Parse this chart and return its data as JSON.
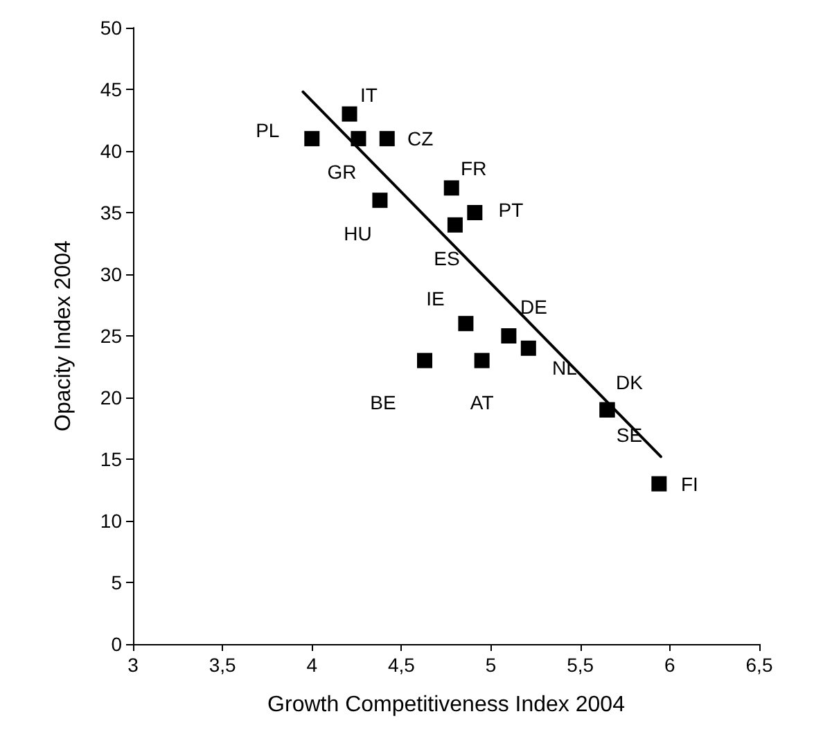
{
  "chart_data": {
    "type": "scatter",
    "xlabel": "Growth Competitiveness Index 2004",
    "ylabel": "Opacity Index 2004",
    "xlim": [
      3,
      6.5
    ],
    "xticks": [
      3,
      {
        "value": 3.5,
        "label": "3,5"
      },
      4,
      {
        "value": 4.5,
        "label": "4,5"
      },
      5,
      {
        "value": 5.5,
        "label": "5,5"
      },
      6,
      {
        "value": 6.5,
        "label": "6,5"
      }
    ],
    "ylim": [
      0,
      50
    ],
    "yticks": [
      0,
      5,
      10,
      15,
      20,
      25,
      30,
      35,
      40,
      45,
      50
    ],
    "grid": false,
    "series": [
      {
        "color": "#000000",
        "marker": "square",
        "x": [
          4.0,
          4.21,
          4.26,
          4.42,
          4.38,
          4.78,
          4.91,
          4.8,
          4.86,
          5.1,
          5.21,
          4.63,
          4.95,
          5.65,
          5.65,
          5.94
        ],
        "values": [
          41,
          43,
          41,
          41,
          36,
          37,
          35,
          34,
          26,
          25,
          24,
          23,
          23,
          19,
          19,
          13
        ],
        "value_labels": [
          "PL",
          "IT",
          "GR",
          "CZ",
          "HU",
          "FR",
          "PT",
          "ES",
          "IE",
          "DE",
          "NL",
          "BE",
          "AT",
          "DK",
          "SE",
          "FI"
        ]
      },
      {
        "type": "line",
        "color": "#000000",
        "marker": "none",
        "line_style": "solid",
        "x": [
          3.95,
          5.95
        ],
        "values": [
          44.8,
          15.2
        ]
      }
    ]
  }
}
